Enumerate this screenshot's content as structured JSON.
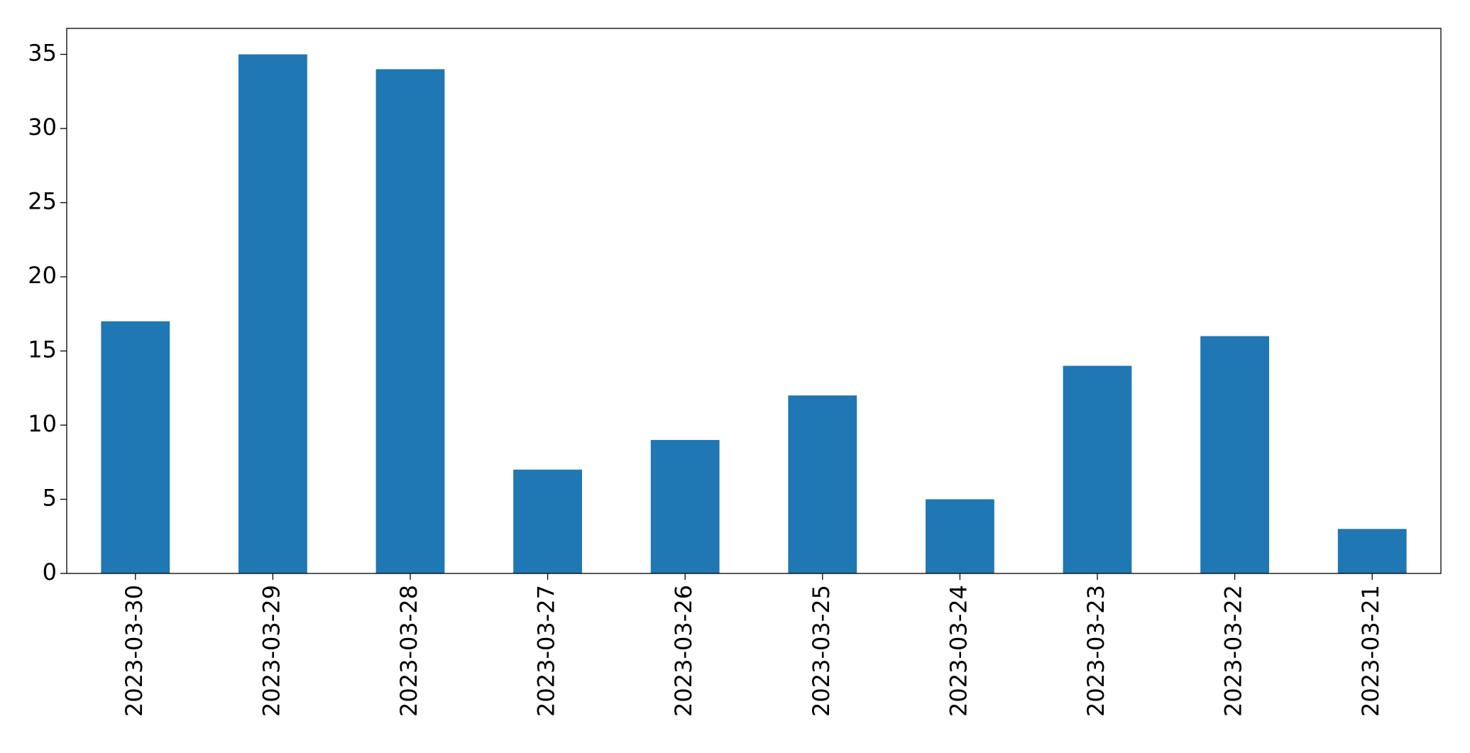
{
  "chart_data": {
    "type": "bar",
    "categories": [
      "2023-03-30",
      "2023-03-29",
      "2023-03-28",
      "2023-03-27",
      "2023-03-26",
      "2023-03-25",
      "2023-03-24",
      "2023-03-23",
      "2023-03-22",
      "2023-03-21"
    ],
    "values": [
      17,
      35,
      34,
      7,
      9,
      12,
      5,
      14,
      16,
      3
    ],
    "color": "#1f77b4",
    "ylim": [
      0,
      36.75
    ],
    "yticks": [
      0,
      5,
      10,
      15,
      20,
      25,
      30,
      35
    ],
    "grid": false
  }
}
